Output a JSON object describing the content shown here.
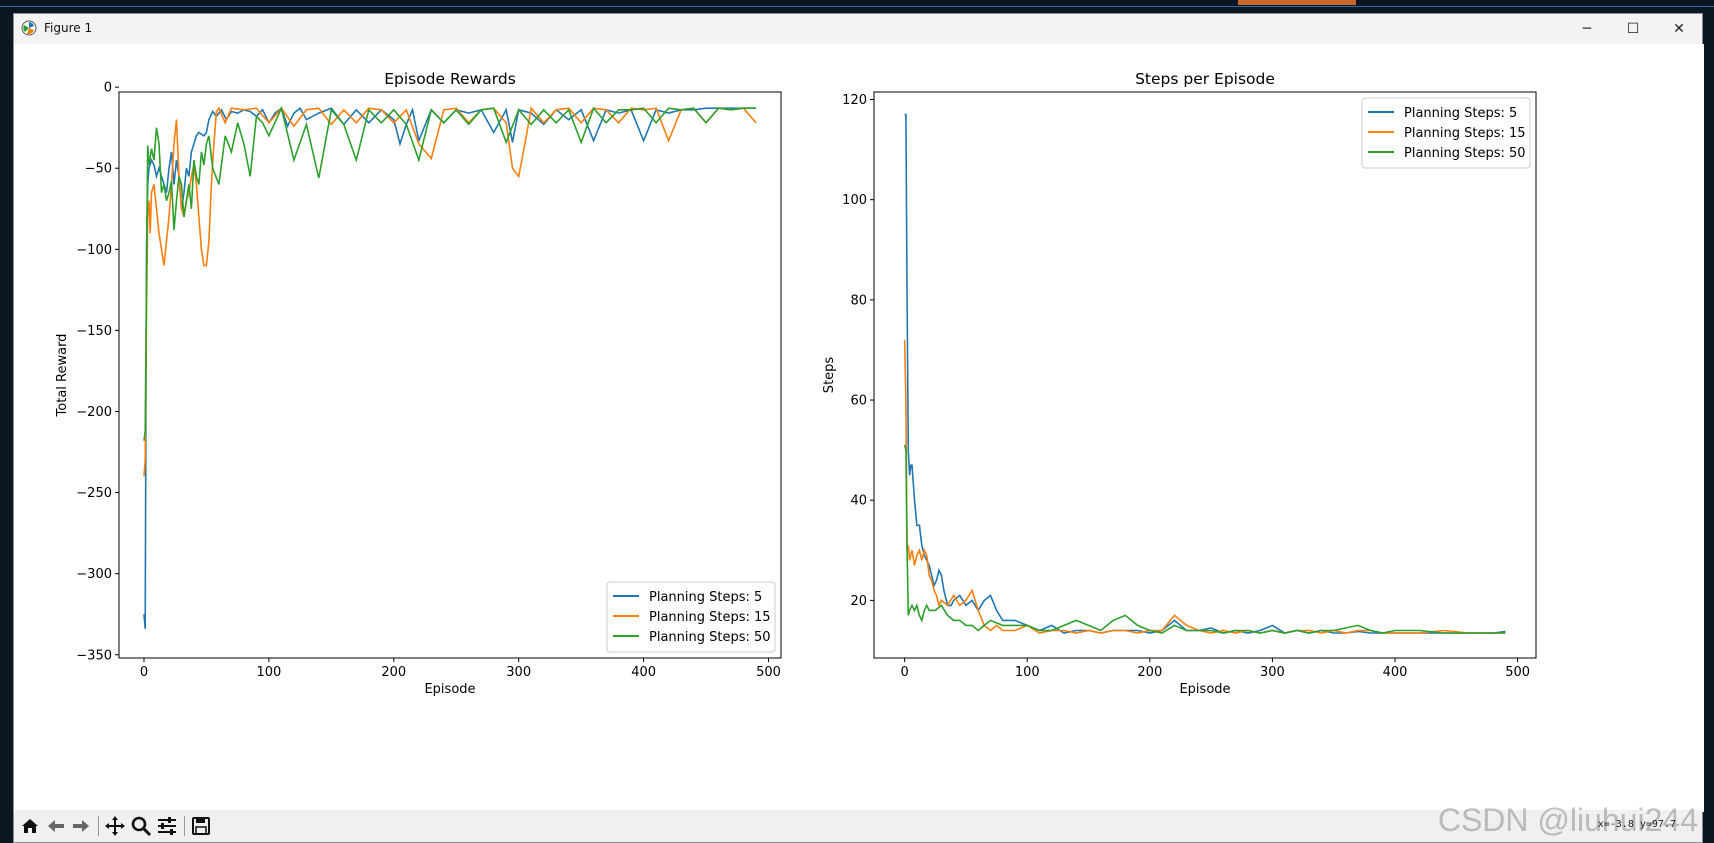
{
  "window": {
    "title": "Figure 1",
    "minimize": "─",
    "maximize": "☐",
    "close": "✕"
  },
  "toolbar": {
    "buttons": [
      {
        "icon": "home-icon",
        "glyph": "⌂"
      },
      {
        "icon": "back-icon",
        "glyph": "←"
      },
      {
        "icon": "forward-icon",
        "glyph": "→"
      },
      {
        "icon": "pan-icon",
        "glyph": "✥"
      },
      {
        "icon": "zoom-icon",
        "glyph": "🔍"
      },
      {
        "icon": "configure-subplots-icon",
        "glyph": "☰"
      },
      {
        "icon": "save-icon",
        "glyph": "💾"
      }
    ],
    "coords": "x=-3.8 y=97.7",
    "watermark": "CSDN @liuhui244"
  },
  "colors": {
    "s5": "#1f77b4",
    "s15": "#ff7f0e",
    "s50": "#2ca02c"
  },
  "chart_data": [
    {
      "type": "line",
      "title": "Episode Rewards",
      "xlabel": "Episode",
      "ylabel": "Total Reward",
      "xlim": [
        -20,
        510
      ],
      "ylim": [
        -352,
        -3
      ],
      "xticks": [
        0,
        100,
        200,
        300,
        400,
        500
      ],
      "yticks": [
        0,
        -50,
        -100,
        -150,
        -200,
        -250,
        -300,
        -350
      ],
      "grid": false,
      "legend_position": "lower right",
      "series": [
        {
          "name": "Planning Steps: 5",
          "color": "#1f77b4",
          "x": [
            0,
            1,
            2,
            3,
            4,
            6,
            8,
            10,
            12,
            14,
            16,
            18,
            20,
            22,
            24,
            26,
            28,
            30,
            32,
            34,
            36,
            38,
            40,
            42,
            44,
            46,
            48,
            50,
            52,
            55,
            58,
            62,
            66,
            70,
            75,
            80,
            85,
            90,
            95,
            100,
            105,
            110,
            115,
            120,
            125,
            130,
            140,
            150,
            160,
            170,
            180,
            190,
            200,
            205,
            210,
            215,
            220,
            230,
            240,
            250,
            260,
            270,
            280,
            290,
            295,
            300,
            310,
            320,
            330,
            340,
            350,
            360,
            370,
            380,
            390,
            400,
            410,
            420,
            430,
            440,
            450,
            460,
            470,
            480,
            490
          ],
          "y": [
            -325,
            -334,
            -100,
            -60,
            -50,
            -45,
            -48,
            -55,
            -50,
            -55,
            -60,
            -65,
            -50,
            -40,
            -60,
            -45,
            -55,
            -75,
            -65,
            -50,
            -55,
            -40,
            -35,
            -30,
            -28,
            -29,
            -30,
            -28,
            -20,
            -15,
            -18,
            -14,
            -20,
            -15,
            -16,
            -14,
            -15,
            -18,
            -14,
            -22,
            -16,
            -13,
            -24,
            -16,
            -13,
            -20,
            -16,
            -13,
            -23,
            -14,
            -22,
            -14,
            -20,
            -35,
            -23,
            -14,
            -33,
            -14,
            -22,
            -14,
            -16,
            -14,
            -28,
            -14,
            -34,
            -14,
            -16,
            -23,
            -14,
            -20,
            -14,
            -33,
            -14,
            -16,
            -14,
            -33,
            -14,
            -16,
            -14,
            -14,
            -13,
            -13,
            -13,
            -13,
            -13
          ]
        },
        {
          "name": "Planning Steps: 15",
          "color": "#ff7f0e",
          "x": [
            0,
            1,
            2,
            3,
            4,
            5,
            6,
            8,
            10,
            12,
            14,
            16,
            18,
            20,
            22,
            24,
            26,
            28,
            30,
            32,
            34,
            36,
            38,
            40,
            42,
            44,
            46,
            48,
            50,
            52,
            54,
            56,
            58,
            60,
            65,
            70,
            80,
            90,
            100,
            110,
            120,
            130,
            140,
            150,
            160,
            170,
            180,
            190,
            200,
            210,
            220,
            230,
            240,
            250,
            260,
            270,
            280,
            290,
            295,
            300,
            305,
            310,
            320,
            330,
            340,
            350,
            360,
            370,
            380,
            390,
            400,
            410,
            420,
            430,
            440,
            450,
            460,
            470,
            480,
            490
          ],
          "y": [
            -240,
            -230,
            -140,
            -80,
            -70,
            -90,
            -65,
            -60,
            -75,
            -90,
            -100,
            -110,
            -95,
            -80,
            -60,
            -35,
            -20,
            -55,
            -75,
            -80,
            -70,
            -65,
            -55,
            -48,
            -60,
            -80,
            -100,
            -110,
            -110,
            -95,
            -60,
            -35,
            -15,
            -13,
            -22,
            -13,
            -14,
            -13,
            -22,
            -13,
            -24,
            -14,
            -13,
            -23,
            -14,
            -22,
            -13,
            -14,
            -22,
            -14,
            -35,
            -44,
            -14,
            -13,
            -22,
            -14,
            -13,
            -22,
            -50,
            -55,
            -35,
            -13,
            -22,
            -14,
            -13,
            -22,
            -13,
            -14,
            -22,
            -13,
            -14,
            -13,
            -33,
            -14,
            -13,
            -22,
            -13,
            -14,
            -13,
            -22
          ]
        },
        {
          "name": "Planning Steps: 50",
          "color": "#2ca02c",
          "x": [
            0,
            1,
            2,
            3,
            4,
            6,
            8,
            10,
            12,
            14,
            16,
            18,
            20,
            22,
            24,
            26,
            28,
            30,
            32,
            34,
            36,
            38,
            40,
            42,
            44,
            46,
            48,
            50,
            52,
            55,
            60,
            65,
            70,
            75,
            80,
            85,
            90,
            95,
            100,
            110,
            120,
            130,
            140,
            150,
            160,
            170,
            180,
            190,
            200,
            210,
            220,
            230,
            240,
            250,
            260,
            270,
            280,
            290,
            300,
            310,
            320,
            330,
            340,
            350,
            360,
            370,
            380,
            390,
            400,
            410,
            420,
            430,
            440,
            450,
            460,
            470,
            480,
            490
          ],
          "y": [
            -218,
            -212,
            -120,
            -36,
            -48,
            -38,
            -45,
            -25,
            -35,
            -65,
            -60,
            -70,
            -65,
            -58,
            -88,
            -70,
            -55,
            -60,
            -80,
            -70,
            -60,
            -75,
            -45,
            -55,
            -60,
            -40,
            -48,
            -35,
            -30,
            -50,
            -60,
            -30,
            -40,
            -22,
            -35,
            -55,
            -18,
            -22,
            -30,
            -13,
            -45,
            -23,
            -56,
            -14,
            -23,
            -45,
            -14,
            -22,
            -14,
            -23,
            -45,
            -14,
            -22,
            -14,
            -23,
            -14,
            -13,
            -34,
            -14,
            -23,
            -14,
            -22,
            -14,
            -34,
            -13,
            -22,
            -14,
            -14,
            -13,
            -22,
            -13,
            -14,
            -13,
            -22,
            -13,
            -14,
            -13,
            -13
          ]
        }
      ]
    },
    {
      "type": "line",
      "title": "Steps per Episode",
      "xlabel": "Episode",
      "ylabel": "Steps",
      "xlim": [
        -25,
        515
      ],
      "ylim": [
        8.5,
        121.5
      ],
      "xticks": [
        0,
        100,
        200,
        300,
        400,
        500
      ],
      "yticks": [
        20,
        40,
        60,
        80,
        100,
        120
      ],
      "grid": false,
      "legend_position": "upper right",
      "series": [
        {
          "name": "Planning Steps: 5",
          "color": "#1f77b4",
          "x": [
            0,
            1,
            2,
            3,
            4,
            5,
            6,
            8,
            10,
            12,
            14,
            16,
            18,
            20,
            22,
            24,
            26,
            28,
            30,
            32,
            35,
            38,
            40,
            45,
            50,
            55,
            60,
            65,
            70,
            75,
            80,
            90,
            100,
            110,
            120,
            130,
            140,
            150,
            160,
            170,
            180,
            190,
            200,
            210,
            220,
            230,
            240,
            250,
            260,
            270,
            280,
            290,
            300,
            310,
            320,
            330,
            340,
            350,
            360,
            370,
            380,
            390,
            400,
            420,
            440,
            460,
            480,
            490
          ],
          "y": [
            117,
            117,
            80,
            50,
            45,
            47,
            47,
            40,
            35,
            35,
            31,
            29,
            28,
            27,
            25,
            23,
            24,
            26,
            25,
            22,
            19,
            19,
            20,
            21,
            19,
            20,
            18,
            20,
            21,
            18,
            16,
            16,
            15,
            14,
            15,
            13.5,
            14,
            14,
            13.5,
            14,
            14,
            14,
            13.5,
            14,
            16,
            14,
            14,
            14.5,
            13.5,
            14,
            13.5,
            14,
            15,
            13.5,
            14,
            13.5,
            14,
            13.5,
            13.5,
            13.8,
            13.5,
            13.5,
            13.5,
            13.5,
            13.5,
            13.5,
            13.5,
            13.8
          ]
        },
        {
          "name": "Planning Steps: 15",
          "color": "#ff7f0e",
          "x": [
            0,
            1,
            2,
            3,
            4,
            6,
            8,
            10,
            12,
            14,
            16,
            18,
            20,
            22,
            24,
            26,
            28,
            30,
            35,
            40,
            45,
            50,
            55,
            60,
            65,
            70,
            75,
            80,
            90,
            100,
            110,
            120,
            130,
            140,
            150,
            160,
            170,
            180,
            190,
            200,
            210,
            220,
            230,
            240,
            250,
            260,
            270,
            280,
            290,
            300,
            310,
            320,
            330,
            340,
            350,
            360,
            370,
            380,
            390,
            400,
            420,
            440,
            460,
            480,
            490
          ],
          "y": [
            72,
            60,
            30,
            31,
            28,
            30,
            27,
            29,
            30,
            28,
            30,
            29,
            25,
            24,
            22,
            21,
            19,
            20,
            19,
            21,
            19,
            20,
            22,
            18,
            15,
            14,
            15,
            14,
            14,
            15,
            13.5,
            14,
            14,
            13.5,
            14,
            13.5,
            14,
            14,
            13.5,
            14,
            14,
            17,
            15,
            14,
            13.5,
            14,
            13.5,
            14,
            13.5,
            14,
            13.5,
            14,
            14,
            13.5,
            14,
            13.5,
            14,
            14,
            13.5,
            13.5,
            13.5,
            14,
            13.5,
            13.5,
            13.5
          ]
        },
        {
          "name": "Planning Steps: 50",
          "color": "#2ca02c",
          "x": [
            0,
            1,
            2,
            3,
            4,
            6,
            8,
            10,
            12,
            14,
            16,
            18,
            20,
            25,
            30,
            35,
            40,
            45,
            50,
            55,
            60,
            65,
            70,
            80,
            90,
            100,
            110,
            120,
            130,
            140,
            150,
            160,
            170,
            180,
            190,
            200,
            210,
            220,
            230,
            240,
            250,
            260,
            270,
            280,
            290,
            300,
            310,
            320,
            330,
            340,
            350,
            360,
            370,
            380,
            390,
            400,
            420,
            440,
            460,
            480,
            490
          ],
          "y": [
            51,
            50,
            30,
            17,
            18,
            19,
            18,
            19,
            17,
            16,
            18,
            19,
            18,
            18,
            19,
            17,
            16,
            16,
            15,
            15,
            14,
            15,
            16,
            15,
            15,
            15,
            14,
            14,
            15,
            16,
            15,
            14,
            16,
            17,
            15,
            14,
            13.5,
            15,
            14,
            14,
            14,
            13.5,
            14,
            14,
            13.5,
            14,
            13.5,
            14,
            13.5,
            14,
            14,
            14.5,
            15,
            14,
            13.5,
            14,
            14,
            13.5,
            13.5,
            13.5,
            13.5
          ]
        }
      ]
    }
  ]
}
